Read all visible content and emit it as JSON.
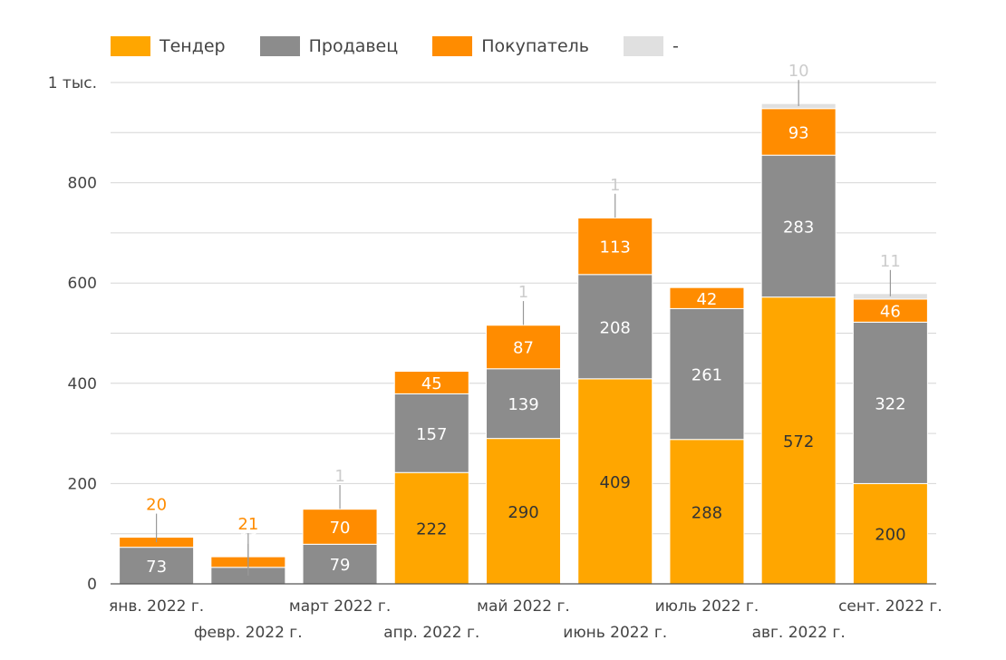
{
  "chart_data": {
    "type": "bar",
    "stacked": true,
    "categories": [
      "янв. 2022 г.",
      "февр. 2022 г.",
      "март 2022 г.",
      "апр. 2022 г.",
      "май 2022 г.",
      "июнь 2022 г.",
      "июль 2022 г.",
      "авг. 2022 г.",
      "сент. 2022 г."
    ],
    "series": [
      {
        "name": "Тендер",
        "color": "#ffa600",
        "values": [
          0,
          0,
          0,
          222,
          290,
          409,
          288,
          572,
          200
        ],
        "label_color": "#333333"
      },
      {
        "name": "Продавец",
        "color": "#8c8c8c",
        "values": [
          73,
          33,
          79,
          157,
          139,
          208,
          261,
          283,
          322
        ],
        "label_color": "#ffffff"
      },
      {
        "name": "Покупатель",
        "color": "#ff8c00",
        "values": [
          20,
          21,
          70,
          45,
          87,
          113,
          42,
          93,
          46
        ],
        "label_color": "#ffffff"
      },
      {
        "name": "-",
        "color": "#e0e0e0",
        "values": [
          0,
          0,
          1,
          0,
          1,
          1,
          0,
          10,
          11
        ],
        "label_color": "#cccccc"
      }
    ],
    "y_ticks": [
      "0",
      "200",
      "400",
      "600",
      "800",
      "1 тыс."
    ],
    "ylim": [
      0,
      1000
    ],
    "grid": true,
    "legend_position": "top-left"
  }
}
